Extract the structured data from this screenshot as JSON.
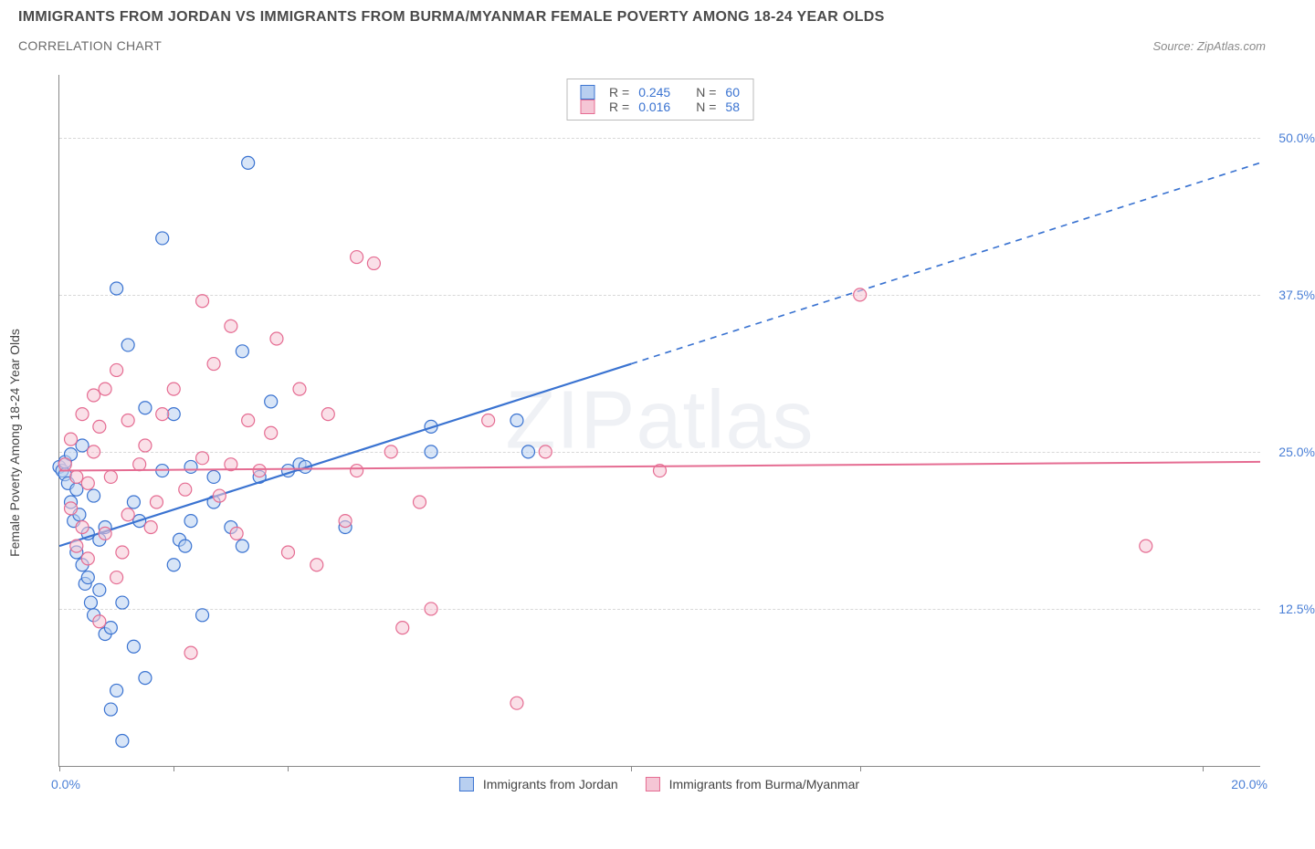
{
  "header": {
    "title": "IMMIGRANTS FROM JORDAN VS IMMIGRANTS FROM BURMA/MYANMAR FEMALE POVERTY AMONG 18-24 YEAR OLDS",
    "subtitle": "CORRELATION CHART",
    "source": "Source: ZipAtlas.com"
  },
  "chart": {
    "type": "scatter",
    "ylabel": "Female Poverty Among 18-24 Year Olds",
    "xlim": [
      0,
      21
    ],
    "ylim": [
      0,
      55
    ],
    "x_ticks_label": {
      "left": "0.0%",
      "right": "20.0%"
    },
    "x_tick_positions": [
      0,
      2,
      4,
      10,
      14,
      20
    ],
    "y_ticks": [
      {
        "v": 12.5,
        "label": "12.5%"
      },
      {
        "v": 25.0,
        "label": "25.0%"
      },
      {
        "v": 37.5,
        "label": "37.5%"
      },
      {
        "v": 50.0,
        "label": "50.0%"
      }
    ],
    "grid_color": "#d8d8d8",
    "background": "#ffffff",
    "marker_radius": 7,
    "marker_opacity": 0.55,
    "watermark": "ZIPatlas",
    "series": [
      {
        "name": "Immigrants from Jordan",
        "color_stroke": "#3a73d1",
        "color_fill": "#b8cff0",
        "r_label": "R =",
        "r_value": "0.245",
        "n_label": "N =",
        "n_value": "60",
        "trend": {
          "x1": 0,
          "y1": 17.5,
          "x2": 10,
          "y2": 32,
          "dash_to_x": 21,
          "dash_to_y": 48,
          "width": 2.2
        },
        "points": [
          [
            0.0,
            23.8
          ],
          [
            0.05,
            23.5
          ],
          [
            0.1,
            23.2
          ],
          [
            0.1,
            24.2
          ],
          [
            0.15,
            22.5
          ],
          [
            0.2,
            21.0
          ],
          [
            0.2,
            24.8
          ],
          [
            0.25,
            19.5
          ],
          [
            0.3,
            22.0
          ],
          [
            0.3,
            17.0
          ],
          [
            0.35,
            20.0
          ],
          [
            0.4,
            16.0
          ],
          [
            0.4,
            25.5
          ],
          [
            0.45,
            14.5
          ],
          [
            0.5,
            15.0
          ],
          [
            0.5,
            18.5
          ],
          [
            0.55,
            13.0
          ],
          [
            0.6,
            21.5
          ],
          [
            0.6,
            12.0
          ],
          [
            0.7,
            18.0
          ],
          [
            0.7,
            14.0
          ],
          [
            0.8,
            10.5
          ],
          [
            0.8,
            19.0
          ],
          [
            0.9,
            11.0
          ],
          [
            0.9,
            4.5
          ],
          [
            1.0,
            6.0
          ],
          [
            1.0,
            38.0
          ],
          [
            1.1,
            13.0
          ],
          [
            1.1,
            2.0
          ],
          [
            1.2,
            33.5
          ],
          [
            1.3,
            9.5
          ],
          [
            1.3,
            21.0
          ],
          [
            1.4,
            19.5
          ],
          [
            1.5,
            28.5
          ],
          [
            1.5,
            7.0
          ],
          [
            1.8,
            23.5
          ],
          [
            1.8,
            42.0
          ],
          [
            2.0,
            16.0
          ],
          [
            2.0,
            28.0
          ],
          [
            2.1,
            18.0
          ],
          [
            2.2,
            17.5
          ],
          [
            2.3,
            23.8
          ],
          [
            2.3,
            19.5
          ],
          [
            2.5,
            12.0
          ],
          [
            2.7,
            21.0
          ],
          [
            2.7,
            23.0
          ],
          [
            3.0,
            19.0
          ],
          [
            3.2,
            33.0
          ],
          [
            3.2,
            17.5
          ],
          [
            3.3,
            48.0
          ],
          [
            3.5,
            23.0
          ],
          [
            3.7,
            29.0
          ],
          [
            4.0,
            23.5
          ],
          [
            4.2,
            24.0
          ],
          [
            4.3,
            23.8
          ],
          [
            5.0,
            19.0
          ],
          [
            6.5,
            27.0
          ],
          [
            6.5,
            25.0
          ],
          [
            8.0,
            27.5
          ],
          [
            8.2,
            25.0
          ]
        ]
      },
      {
        "name": "Immigrants from Burma/Myanmar",
        "color_stroke": "#e56c92",
        "color_fill": "#f5c6d5",
        "r_label": "R =",
        "r_value": "0.016",
        "n_label": "N =",
        "n_value": "58",
        "trend": {
          "x1": 0,
          "y1": 23.5,
          "x2": 21,
          "y2": 24.2,
          "dash_to_x": 21,
          "dash_to_y": 24.2,
          "width": 2.0
        },
        "points": [
          [
            0.1,
            24.0
          ],
          [
            0.2,
            20.5
          ],
          [
            0.2,
            26.0
          ],
          [
            0.3,
            17.5
          ],
          [
            0.3,
            23.0
          ],
          [
            0.4,
            19.0
          ],
          [
            0.4,
            28.0
          ],
          [
            0.5,
            22.5
          ],
          [
            0.5,
            16.5
          ],
          [
            0.6,
            25.0
          ],
          [
            0.7,
            11.5
          ],
          [
            0.7,
            27.0
          ],
          [
            0.8,
            30.0
          ],
          [
            0.8,
            18.5
          ],
          [
            0.9,
            23.0
          ],
          [
            1.0,
            31.5
          ],
          [
            1.0,
            15.0
          ],
          [
            1.2,
            27.5
          ],
          [
            1.2,
            20.0
          ],
          [
            1.4,
            24.0
          ],
          [
            1.5,
            25.5
          ],
          [
            1.7,
            21.0
          ],
          [
            1.8,
            28.0
          ],
          [
            2.0,
            30.0
          ],
          [
            2.2,
            22.0
          ],
          [
            2.3,
            9.0
          ],
          [
            2.5,
            24.5
          ],
          [
            2.5,
            37.0
          ],
          [
            2.7,
            32.0
          ],
          [
            3.0,
            24.0
          ],
          [
            3.0,
            35.0
          ],
          [
            3.1,
            18.5
          ],
          [
            3.3,
            27.5
          ],
          [
            3.5,
            23.5
          ],
          [
            3.7,
            26.5
          ],
          [
            4.0,
            17.0
          ],
          [
            4.5,
            16.0
          ],
          [
            4.7,
            28.0
          ],
          [
            5.0,
            19.5
          ],
          [
            5.2,
            40.5
          ],
          [
            5.2,
            23.5
          ],
          [
            5.5,
            40.0
          ],
          [
            5.8,
            25.0
          ],
          [
            6.0,
            11.0
          ],
          [
            6.3,
            21.0
          ],
          [
            6.5,
            12.5
          ],
          [
            7.5,
            27.5
          ],
          [
            8.0,
            5.0
          ],
          [
            8.5,
            25.0
          ],
          [
            10.5,
            23.5
          ],
          [
            14.0,
            37.5
          ],
          [
            19.0,
            17.5
          ],
          [
            3.8,
            34.0
          ],
          [
            4.2,
            30.0
          ],
          [
            1.6,
            19.0
          ],
          [
            2.8,
            21.5
          ],
          [
            0.6,
            29.5
          ],
          [
            1.1,
            17.0
          ]
        ]
      }
    ],
    "legend_bottom": [
      {
        "name": "Immigrants from Jordan",
        "fill": "#b8cff0",
        "stroke": "#3a73d1"
      },
      {
        "name": "Immigrants from Burma/Myanmar",
        "fill": "#f5c6d5",
        "stroke": "#e56c92"
      }
    ]
  }
}
